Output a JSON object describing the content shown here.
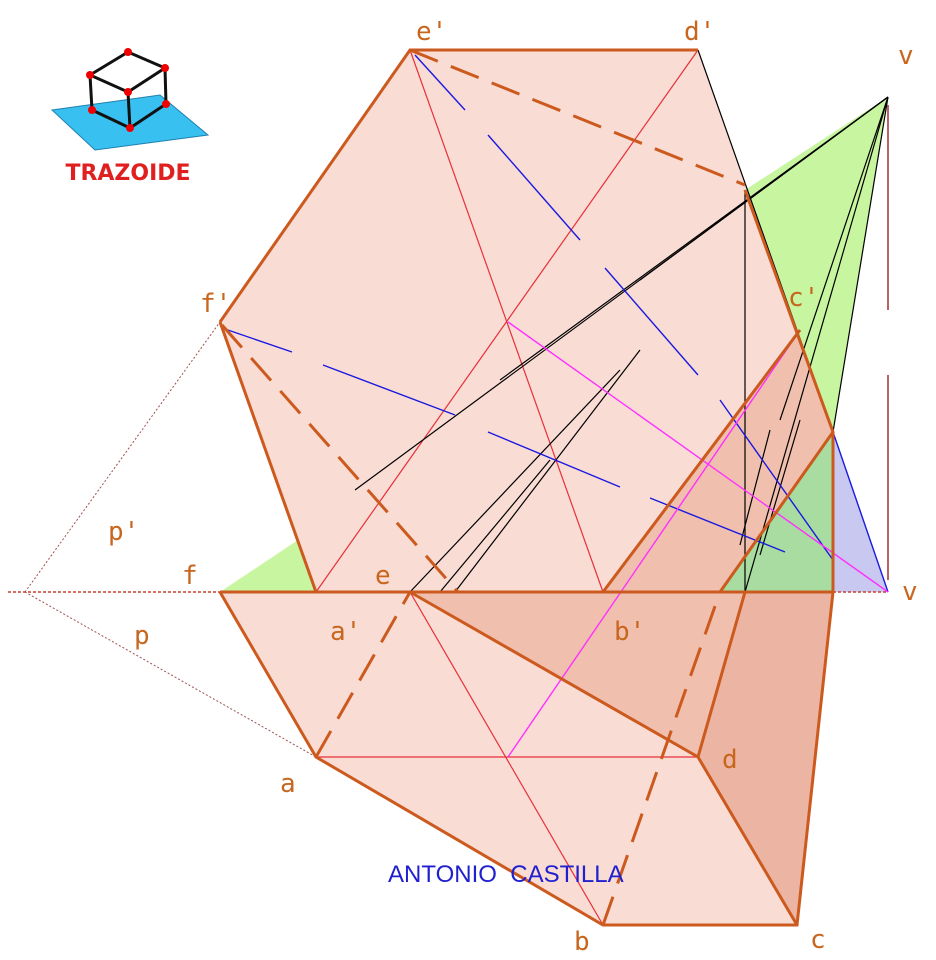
{
  "logo": {
    "text": "TRAZOIDE"
  },
  "labels": [
    "e'",
    "d'",
    "v",
    "f'",
    "c'",
    "p'",
    "f",
    "e",
    "a'",
    "b'",
    "v",
    "p",
    "a",
    "d",
    "b",
    "c"
  ],
  "author": "ANTONIO  CASTILLA"
}
